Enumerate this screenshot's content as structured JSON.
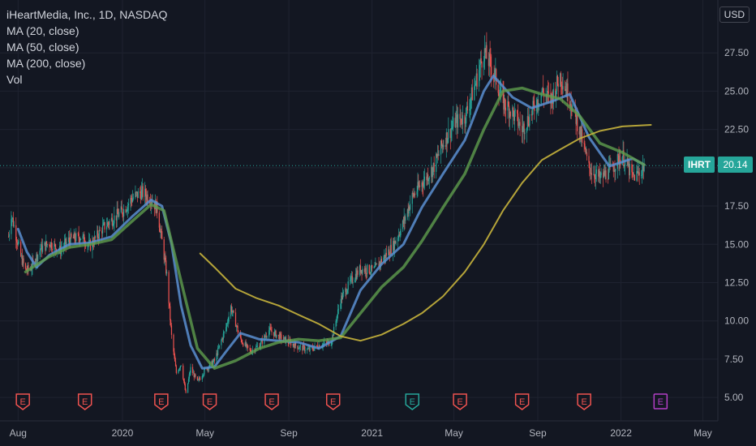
{
  "header": {
    "title": "iHeartMedia, Inc., 1D, NASDAQ",
    "indicators": [
      "MA (20, close)",
      "MA (50, close)",
      "MA (200, close)",
      "Vol"
    ],
    "currency": "USD"
  },
  "price_label": {
    "ticker": "IHRT",
    "value": "20.14"
  },
  "colors": {
    "background": "#131722",
    "grid": "#1f2330",
    "up": "#26a69a",
    "down": "#ef5350",
    "ma20": "#5b8fd1",
    "ma50": "#5f9e4e",
    "ma200": "#c8b43c",
    "earnings": "#ef5350",
    "earnings_up": "#26a69a",
    "earnings_upcoming": "#b33fc6"
  },
  "chart_data": {
    "type": "line",
    "title": "iHeartMedia, Inc., 1D, NASDAQ",
    "xlabel": "",
    "ylabel": "",
    "x_tick_labels": [
      "Aug",
      "2020",
      "May",
      "Sep",
      "2021",
      "May",
      "Sep",
      "2022",
      "May"
    ],
    "y_tick_labels": [
      "5.00",
      "7.50",
      "10.00",
      "12.50",
      "15.00",
      "17.50",
      "20.00",
      "22.50",
      "25.00",
      "27.50"
    ],
    "ylim": [
      4.0,
      30.0
    ],
    "last_price": 20.14,
    "grid": true,
    "series": [
      {
        "name": "Price",
        "points": [
          [
            "2019-07-18",
            15.5
          ],
          [
            "2019-07-22",
            17.0
          ],
          [
            "2019-07-29",
            15.6
          ],
          [
            "2019-08-05",
            14.2
          ],
          [
            "2019-08-12",
            13.3
          ],
          [
            "2019-08-19",
            13.4
          ],
          [
            "2019-08-26",
            14.0
          ],
          [
            "2019-09-03",
            14.7
          ],
          [
            "2019-09-16",
            15.1
          ],
          [
            "2019-10-01",
            14.6
          ],
          [
            "2019-10-15",
            15.3
          ],
          [
            "2019-11-01",
            15.5
          ],
          [
            "2019-11-15",
            14.9
          ],
          [
            "2019-12-02",
            16.0
          ],
          [
            "2019-12-16",
            16.6
          ],
          [
            "2020-01-02",
            17.2
          ],
          [
            "2020-01-15",
            18.0
          ],
          [
            "2020-01-29",
            18.4
          ],
          [
            "2020-02-12",
            18.0
          ],
          [
            "2020-02-21",
            17.3
          ],
          [
            "2020-02-28",
            15.2
          ],
          [
            "2020-03-06",
            13.0
          ],
          [
            "2020-03-13",
            9.0
          ],
          [
            "2020-03-20",
            6.6
          ],
          [
            "2020-03-27",
            7.2
          ],
          [
            "2020-04-03",
            5.2
          ],
          [
            "2020-04-10",
            6.9
          ],
          [
            "2020-04-20",
            6.0
          ],
          [
            "2020-05-01",
            6.8
          ],
          [
            "2020-05-15",
            7.4
          ],
          [
            "2020-06-01",
            9.6
          ],
          [
            "2020-06-08",
            10.9
          ],
          [
            "2020-06-22",
            8.8
          ],
          [
            "2020-07-06",
            8.0
          ],
          [
            "2020-07-20",
            8.4
          ],
          [
            "2020-08-03",
            9.4
          ],
          [
            "2020-08-17",
            9.0
          ],
          [
            "2020-09-01",
            8.6
          ],
          [
            "2020-09-15",
            8.3
          ],
          [
            "2020-10-01",
            8.1
          ],
          [
            "2020-10-15",
            8.4
          ],
          [
            "2020-11-02",
            8.6
          ],
          [
            "2020-11-16",
            11.4
          ],
          [
            "2020-12-01",
            12.6
          ],
          [
            "2020-12-15",
            13.4
          ],
          [
            "2021-01-04",
            13.3
          ],
          [
            "2021-01-19",
            14.2
          ],
          [
            "2021-02-01",
            14.9
          ],
          [
            "2021-02-16",
            16.4
          ],
          [
            "2021-03-01",
            18.1
          ],
          [
            "2021-03-15",
            19.0
          ],
          [
            "2021-04-01",
            20.0
          ],
          [
            "2021-04-15",
            21.6
          ],
          [
            "2021-05-03",
            23.0
          ],
          [
            "2021-05-17",
            23.3
          ],
          [
            "2021-06-01",
            25.4
          ],
          [
            "2021-06-14",
            27.6
          ],
          [
            "2021-06-28",
            26.3
          ],
          [
            "2021-07-12",
            24.3
          ],
          [
            "2021-07-26",
            23.6
          ],
          [
            "2021-08-09",
            22.5
          ],
          [
            "2021-08-23",
            23.6
          ],
          [
            "2021-09-07",
            25.0
          ],
          [
            "2021-09-20",
            24.4
          ],
          [
            "2021-10-04",
            26.0
          ],
          [
            "2021-10-18",
            24.6
          ],
          [
            "2021-11-01",
            22.5
          ],
          [
            "2021-11-15",
            20.0
          ],
          [
            "2021-12-01",
            19.3
          ],
          [
            "2021-12-15",
            19.8
          ],
          [
            "2022-01-03",
            20.8
          ],
          [
            "2022-01-18",
            19.4
          ],
          [
            "2022-01-27",
            19.6
          ],
          [
            "2022-02-04",
            20.14
          ]
        ]
      },
      {
        "name": "MA (20, close)",
        "points": [
          [
            "2019-08-01",
            16.0
          ],
          [
            "2019-08-14",
            14.5
          ],
          [
            "2019-08-28",
            13.5
          ],
          [
            "2019-09-16",
            14.3
          ],
          [
            "2019-10-15",
            15.0
          ],
          [
            "2019-11-15",
            15.1
          ],
          [
            "2019-12-16",
            15.5
          ],
          [
            "2020-01-15",
            16.8
          ],
          [
            "2020-02-12",
            17.9
          ],
          [
            "2020-02-28",
            17.5
          ],
          [
            "2020-03-13",
            15.0
          ],
          [
            "2020-03-27",
            11.0
          ],
          [
            "2020-04-10",
            8.4
          ],
          [
            "2020-04-27",
            6.9
          ],
          [
            "2020-05-15",
            7.0
          ],
          [
            "2020-06-01",
            8.0
          ],
          [
            "2020-06-22",
            9.2
          ],
          [
            "2020-07-20",
            8.8
          ],
          [
            "2020-08-17",
            8.7
          ],
          [
            "2020-09-15",
            8.6
          ],
          [
            "2020-10-15",
            8.2
          ],
          [
            "2020-11-16",
            9.0
          ],
          [
            "2020-12-15",
            12.0
          ],
          [
            "2021-01-15",
            13.7
          ],
          [
            "2021-02-16",
            15.0
          ],
          [
            "2021-03-15",
            17.4
          ],
          [
            "2021-04-15",
            19.6
          ],
          [
            "2021-05-17",
            21.8
          ],
          [
            "2021-06-14",
            25.0
          ],
          [
            "2021-06-28",
            26.0
          ],
          [
            "2021-07-26",
            24.6
          ],
          [
            "2021-08-23",
            23.9
          ],
          [
            "2021-09-20",
            24.3
          ],
          [
            "2021-10-18",
            24.8
          ],
          [
            "2021-11-15",
            22.0
          ],
          [
            "2021-12-15",
            20.1
          ],
          [
            "2022-01-18",
            20.6
          ],
          [
            "2022-02-04",
            20.2
          ]
        ]
      },
      {
        "name": "MA (50, close)",
        "points": [
          [
            "2019-08-12",
            13.2
          ],
          [
            "2019-09-16",
            14.2
          ],
          [
            "2019-10-15",
            14.8
          ],
          [
            "2019-11-15",
            15.0
          ],
          [
            "2019-12-16",
            15.3
          ],
          [
            "2020-01-15",
            16.5
          ],
          [
            "2020-02-12",
            17.6
          ],
          [
            "2020-03-02",
            17.2
          ],
          [
            "2020-03-27",
            12.6
          ],
          [
            "2020-04-20",
            8.2
          ],
          [
            "2020-05-15",
            6.9
          ],
          [
            "2020-06-15",
            7.4
          ],
          [
            "2020-07-20",
            8.2
          ],
          [
            "2020-08-17",
            8.6
          ],
          [
            "2020-09-15",
            8.8
          ],
          [
            "2020-10-15",
            8.7
          ],
          [
            "2020-11-16",
            8.9
          ],
          [
            "2020-12-15",
            10.5
          ],
          [
            "2021-01-15",
            12.2
          ],
          [
            "2021-02-16",
            13.5
          ],
          [
            "2021-03-15",
            15.2
          ],
          [
            "2021-04-15",
            17.4
          ],
          [
            "2021-05-17",
            19.6
          ],
          [
            "2021-06-14",
            22.5
          ],
          [
            "2021-07-12",
            25.0
          ],
          [
            "2021-08-09",
            25.2
          ],
          [
            "2021-09-07",
            24.8
          ],
          [
            "2021-10-04",
            24.5
          ],
          [
            "2021-11-01",
            23.4
          ],
          [
            "2021-12-01",
            21.6
          ],
          [
            "2022-01-03",
            21.0
          ],
          [
            "2022-02-04",
            20.2
          ]
        ]
      },
      {
        "name": "MA (200, close)",
        "points": [
          [
            "2020-04-24",
            14.4
          ],
          [
            "2020-05-15",
            13.5
          ],
          [
            "2020-06-15",
            12.1
          ],
          [
            "2020-07-15",
            11.5
          ],
          [
            "2020-08-17",
            11.0
          ],
          [
            "2020-09-15",
            10.4
          ],
          [
            "2020-10-15",
            9.8
          ],
          [
            "2020-11-16",
            9.0
          ],
          [
            "2020-12-15",
            8.7
          ],
          [
            "2021-01-15",
            9.1
          ],
          [
            "2021-02-16",
            9.8
          ],
          [
            "2021-03-15",
            10.5
          ],
          [
            "2021-04-15",
            11.6
          ],
          [
            "2021-05-17",
            13.2
          ],
          [
            "2021-06-14",
            15.0
          ],
          [
            "2021-07-12",
            17.2
          ],
          [
            "2021-08-09",
            19.0
          ],
          [
            "2021-09-07",
            20.5
          ],
          [
            "2021-10-04",
            21.2
          ],
          [
            "2021-11-01",
            21.9
          ],
          [
            "2021-12-01",
            22.4
          ],
          [
            "2022-01-03",
            22.7
          ],
          [
            "2022-02-14",
            22.8
          ]
        ]
      }
    ],
    "earnings_markers": [
      {
        "date": "2019-08-08",
        "label": "E",
        "kind": "miss"
      },
      {
        "date": "2019-11-07",
        "label": "E",
        "kind": "miss"
      },
      {
        "date": "2020-02-27",
        "label": "E",
        "kind": "miss"
      },
      {
        "date": "2020-05-08",
        "label": "E",
        "kind": "miss"
      },
      {
        "date": "2020-08-07",
        "label": "E",
        "kind": "miss"
      },
      {
        "date": "2020-11-05",
        "label": "E",
        "kind": "miss"
      },
      {
        "date": "2021-03-01",
        "label": "E",
        "kind": "beat"
      },
      {
        "date": "2021-05-10",
        "label": "E",
        "kind": "miss"
      },
      {
        "date": "2021-08-09",
        "label": "E",
        "kind": "miss"
      },
      {
        "date": "2021-11-08",
        "label": "E",
        "kind": "miss"
      },
      {
        "date": "2022-02-28",
        "label": "E",
        "kind": "upcoming"
      }
    ]
  }
}
